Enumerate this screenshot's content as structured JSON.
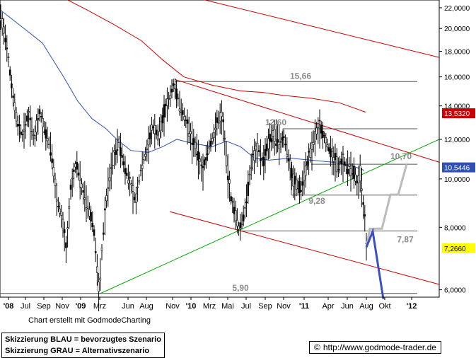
{
  "chart_data": {
    "type": "candlestick",
    "y_axis": {
      "scale": "log",
      "ylim": [
        5.8,
        22.8
      ],
      "ticks": [
        "22,0000",
        "20,0000",
        "18,0000",
        "16,0000",
        "14,0000",
        "12,0000",
        "10,0000",
        "8,0000",
        "6,0000"
      ],
      "tick_values": [
        22,
        20,
        18,
        16,
        14,
        12,
        10,
        8,
        6
      ],
      "position": "right"
    },
    "x_axis": {
      "ticks": [
        "'08",
        "Jul",
        "Sep",
        "Nov",
        "'09",
        "Mrz",
        "Jun",
        "Aug",
        "Nov",
        "'10",
        "Mrz",
        "Mai",
        "Jul",
        "Sep",
        "Nov",
        "'11",
        "Apr",
        "Jun",
        "Aug",
        "Okt",
        "'12"
      ]
    },
    "price_path": [
      [
        0,
        21.5
      ],
      [
        8,
        19.0
      ],
      [
        16,
        15.5
      ],
      [
        24,
        13.0
      ],
      [
        32,
        12.2
      ],
      [
        40,
        13.5
      ],
      [
        48,
        12.0
      ],
      [
        56,
        13.6
      ],
      [
        64,
        12.4
      ],
      [
        72,
        11.5
      ],
      [
        80,
        9.2
      ],
      [
        88,
        8.3
      ],
      [
        94,
        7.2
      ],
      [
        100,
        9.5
      ],
      [
        108,
        10.8
      ],
      [
        116,
        9.6
      ],
      [
        124,
        8.8
      ],
      [
        132,
        8.1
      ],
      [
        140,
        5.9
      ],
      [
        146,
        7.8
      ],
      [
        152,
        9.6
      ],
      [
        160,
        11.0
      ],
      [
        168,
        11.9
      ],
      [
        176,
        10.6
      ],
      [
        184,
        9.8
      ],
      [
        192,
        9.0
      ],
      [
        200,
        10.6
      ],
      [
        208,
        11.5
      ],
      [
        216,
        12.8
      ],
      [
        224,
        12.2
      ],
      [
        232,
        13.6
      ],
      [
        240,
        14.6
      ],
      [
        246,
        15.6
      ],
      [
        252,
        14.3
      ],
      [
        258,
        13.7
      ],
      [
        266,
        12.6
      ],
      [
        272,
        12.0
      ],
      [
        280,
        11.2
      ],
      [
        286,
        10.3
      ],
      [
        292,
        11.2
      ],
      [
        300,
        12.0
      ],
      [
        308,
        13.1
      ],
      [
        314,
        13.5
      ],
      [
        320,
        11.0
      ],
      [
        326,
        9.2
      ],
      [
        332,
        8.6
      ],
      [
        338,
        7.9
      ],
      [
        344,
        8.4
      ],
      [
        350,
        9.4
      ],
      [
        356,
        10.9
      ],
      [
        364,
        11.6
      ],
      [
        372,
        10.8
      ],
      [
        380,
        11.9
      ],
      [
        388,
        12.3
      ],
      [
        396,
        11.8
      ],
      [
        402,
        12.1
      ],
      [
        408,
        11.0
      ],
      [
        414,
        10.0
      ],
      [
        420,
        9.7
      ],
      [
        426,
        9.6
      ],
      [
        432,
        10.5
      ],
      [
        440,
        11.4
      ],
      [
        446,
        12.3
      ],
      [
        452,
        12.8
      ],
      [
        458,
        12.2
      ],
      [
        464,
        11.6
      ],
      [
        470,
        11.1
      ],
      [
        478,
        10.6
      ],
      [
        484,
        10.9
      ],
      [
        490,
        10.6
      ],
      [
        496,
        10.5
      ],
      [
        502,
        10.2
      ],
      [
        506,
        9.6
      ],
      [
        510,
        10.5
      ],
      [
        513,
        8.9
      ],
      [
        516,
        8.3
      ],
      [
        518,
        7.3
      ]
    ],
    "moving_averages": [
      {
        "color": "#cc0000",
        "points": [
          [
            40,
            25.0
          ],
          [
            80,
            23.4
          ],
          [
            120,
            21.9
          ],
          [
            160,
            20.4
          ],
          [
            200,
            18.9
          ],
          [
            230,
            17.3
          ],
          [
            260,
            16.0
          ],
          [
            300,
            15.4
          ],
          [
            340,
            15.0
          ],
          [
            370,
            14.9
          ],
          [
            400,
            14.7
          ],
          [
            440,
            14.5
          ],
          [
            480,
            14.2
          ],
          [
            517,
            13.6
          ]
        ]
      },
      {
        "color": "#2e4fb3",
        "points": [
          [
            0,
            21.8
          ],
          [
            30,
            20.2
          ],
          [
            60,
            18.7
          ],
          [
            90,
            16.0
          ],
          [
            110,
            14.3
          ],
          [
            130,
            13.2
          ],
          [
            150,
            12.6
          ],
          [
            165,
            12.0
          ],
          [
            185,
            11.4
          ],
          [
            210,
            11.3
          ],
          [
            230,
            11.6
          ],
          [
            250,
            12.0
          ],
          [
            270,
            11.8
          ],
          [
            300,
            11.6
          ],
          [
            320,
            11.9
          ],
          [
            340,
            11.6
          ],
          [
            360,
            11.0
          ],
          [
            380,
            10.9
          ],
          [
            410,
            11.0
          ],
          [
            440,
            10.9
          ],
          [
            470,
            10.8
          ],
          [
            500,
            10.6
          ],
          [
            515,
            10.4
          ]
        ]
      }
    ],
    "trend_lines": [
      {
        "color": "#cc0000",
        "from": [
          268,
          23.2
        ],
        "to": [
          621,
          17.5
        ]
      },
      {
        "color": "#cc0000",
        "from": [
          248,
          15.8
        ],
        "to": [
          621,
          10.8
        ]
      },
      {
        "color": "#cc0000",
        "from": [
          240,
          8.6
        ],
        "to": [
          621,
          6.15
        ]
      },
      {
        "color": "#00aa00",
        "from": [
          142,
          5.9
        ],
        "to": [
          621,
          12.0
        ]
      }
    ],
    "levels": [
      {
        "label": "15,66",
        "value": 15.66,
        "from": 248,
        "to": 590
      },
      {
        "label": "12,60",
        "value": 12.6,
        "from": 400,
        "to": 590
      },
      {
        "label": "10,70",
        "value": 10.7,
        "from": 440,
        "to": 590
      },
      {
        "label": "9,28",
        "value": 9.28,
        "from": 412,
        "to": 590
      },
      {
        "label": "7,87",
        "value": 7.87,
        "from": 340,
        "to": 590
      },
      {
        "label": "5,90",
        "value": 5.9,
        "from": 0,
        "to": 590
      }
    ],
    "scenario_blue": [
      [
        518,
        7.3
      ],
      [
        527,
        7.85
      ],
      [
        542,
        5.75
      ]
    ],
    "scenario_grey": [
      [
        518,
        7.3
      ],
      [
        523,
        7.95
      ],
      [
        540,
        7.95
      ],
      [
        552,
        9.3
      ],
      [
        563,
        9.3
      ],
      [
        575,
        10.7
      ]
    ],
    "price_labels": [
      {
        "value": "13,5320",
        "y": 13.532,
        "bg": "#cc0000",
        "fg": "#ffffff"
      },
      {
        "value": "10,5446",
        "y": 10.5446,
        "bg": "#2e4fb3",
        "fg": "#ffffff"
      },
      {
        "value": "7,2660",
        "y": 7.266,
        "bg": "#ffff00",
        "fg": "#000000"
      }
    ]
  },
  "footer": {
    "credit": "Chart erstellt mit GodmodeCharting",
    "legend_blue": "Skizzierung BLAU = bevorzugtes Szenario",
    "legend_grey": "Skizzierung GRAU = Alternativszenario",
    "copyright_symbol": "©",
    "url": "http://www.godmode-trader.de"
  }
}
